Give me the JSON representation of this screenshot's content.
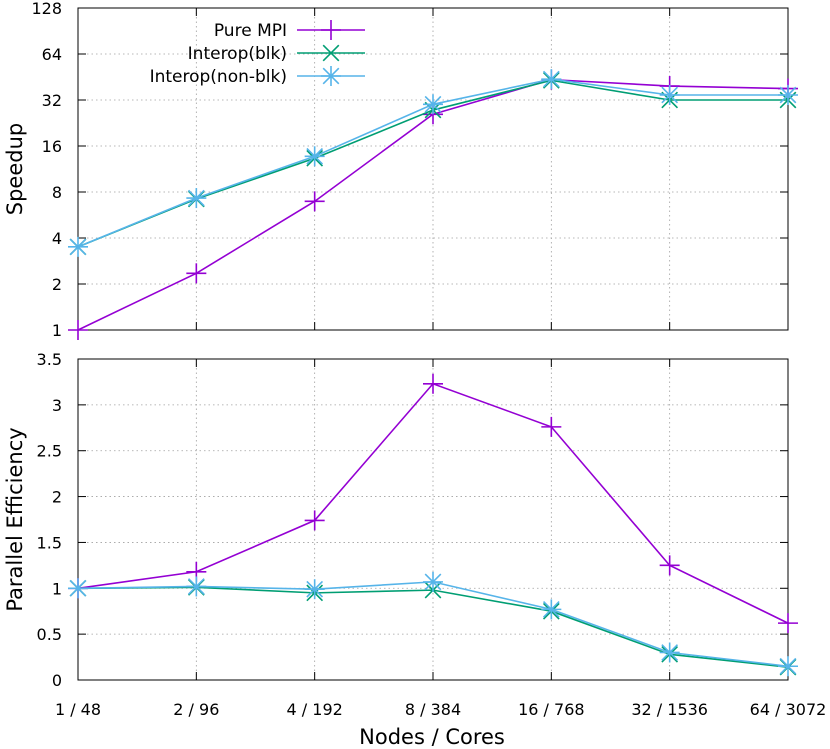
{
  "chart_data": [
    {
      "type": "line",
      "title": "",
      "xlabel": "",
      "ylabel": "Speedup",
      "yscale": "log2",
      "ylim": [
        1,
        128
      ],
      "yticks": [
        "1",
        "2",
        "4",
        "8",
        "16",
        "32",
        "64",
        "128"
      ],
      "categories": [
        "1 / 48",
        "2 / 96",
        "4 / 192",
        "8 / 384",
        "16 / 768",
        "32 / 1536",
        "64 / 3072"
      ],
      "grid": true,
      "legend": "top-left",
      "series": [
        {
          "name": "Pure MPI",
          "color": "#9400d3",
          "marker": "plus",
          "values": [
            1.0,
            2.35,
            6.95,
            25.8,
            43.5,
            39.5,
            38.0
          ]
        },
        {
          "name": "Interop(blk)",
          "color": "#009e73",
          "marker": "cross",
          "values": [
            3.5,
            7.2,
            13.3,
            27.5,
            43.0,
            32.0,
            32.0
          ]
        },
        {
          "name": "Interop(non-blk)",
          "color": "#56b4e9",
          "marker": "star",
          "values": [
            3.5,
            7.3,
            13.7,
            30.0,
            43.8,
            34.5,
            34.5
          ]
        }
      ]
    },
    {
      "type": "line",
      "title": "",
      "xlabel": "Nodes / Cores",
      "ylabel": "Parallel Efficiency",
      "ylim": [
        0,
        3.5
      ],
      "yticks": [
        "0",
        "0.5",
        "1",
        "1.5",
        "2",
        "2.5",
        "3",
        "3.5"
      ],
      "categories": [
        "1 / 48",
        "2 / 96",
        "4 / 192",
        "8 / 384",
        "16 / 768",
        "32 / 1536",
        "64 / 3072"
      ],
      "grid": true,
      "series": [
        {
          "name": "Pure MPI",
          "color": "#9400d3",
          "marker": "plus",
          "values": [
            1.0,
            1.18,
            1.74,
            3.23,
            2.76,
            1.25,
            0.62
          ]
        },
        {
          "name": "Interop(blk)",
          "color": "#009e73",
          "marker": "cross",
          "values": [
            1.0,
            1.01,
            0.95,
            0.98,
            0.75,
            0.28,
            0.14
          ]
        },
        {
          "name": "Interop(non-blk)",
          "color": "#56b4e9",
          "marker": "star",
          "values": [
            1.0,
            1.02,
            0.99,
            1.07,
            0.77,
            0.3,
            0.15
          ]
        }
      ]
    }
  ]
}
